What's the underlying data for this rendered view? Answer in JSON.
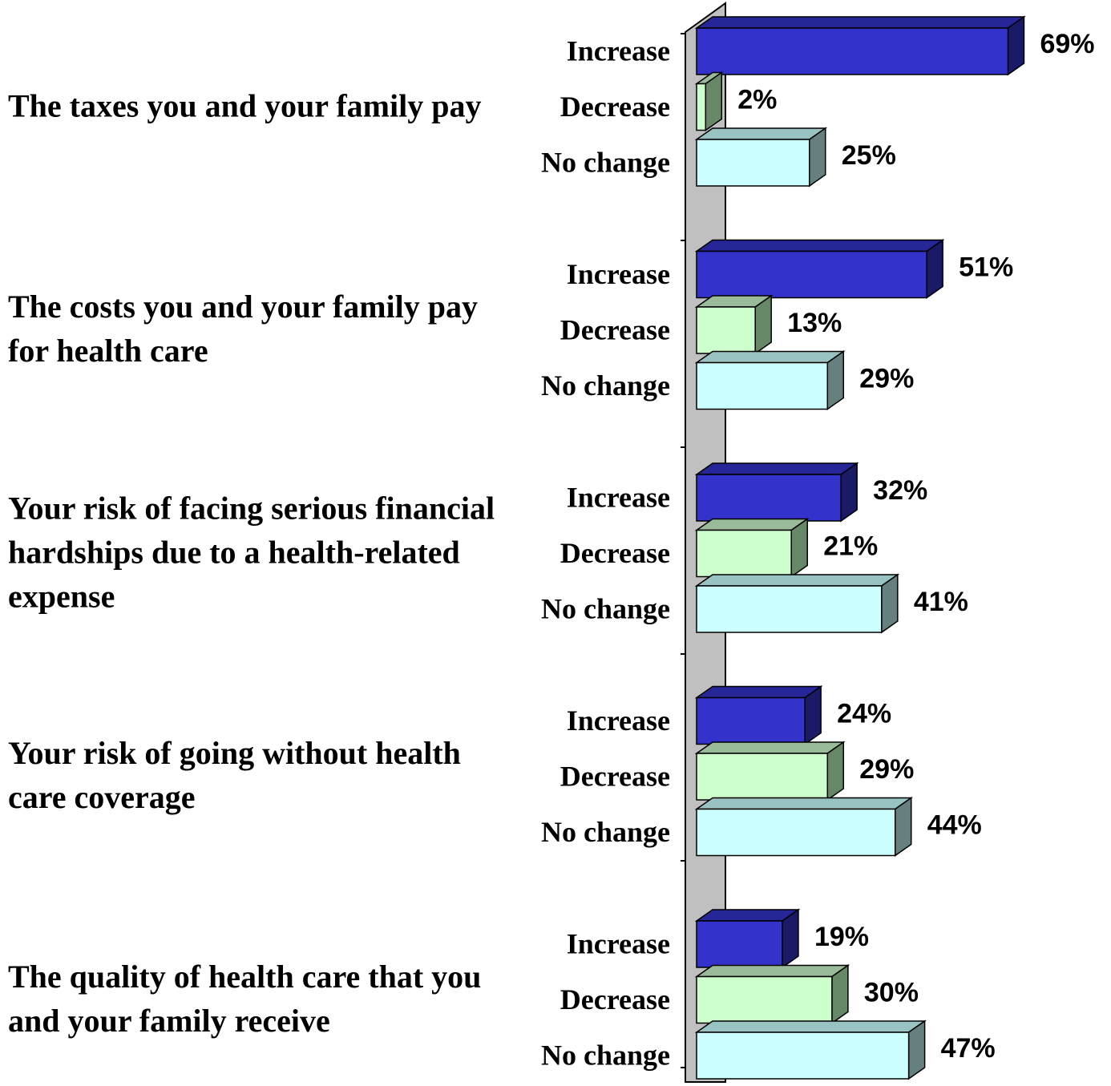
{
  "chart_data": {
    "type": "bar",
    "orientation": "horizontal",
    "style": "3d",
    "groups": [
      {
        "label": "The taxes you and your family pay",
        "bars": [
          {
            "category": "Increase",
            "value": 69,
            "label": "69%"
          },
          {
            "category": "Decrease",
            "value": 2,
            "label": "2%"
          },
          {
            "category": "No change",
            "value": 25,
            "label": "25%"
          }
        ]
      },
      {
        "label": "The costs you and your family pay for health care",
        "bars": [
          {
            "category": "Increase",
            "value": 51,
            "label": "51%"
          },
          {
            "category": "Decrease",
            "value": 13,
            "label": "13%"
          },
          {
            "category": "No change",
            "value": 29,
            "label": "29%"
          }
        ]
      },
      {
        "label": "Your risk of facing serious financial hardships due to a health-related expense",
        "bars": [
          {
            "category": "Increase",
            "value": 32,
            "label": "32%"
          },
          {
            "category": "Decrease",
            "value": 21,
            "label": "21%"
          },
          {
            "category": "No change",
            "value": 41,
            "label": "41%"
          }
        ]
      },
      {
        "label": "Your risk of going without health care coverage",
        "bars": [
          {
            "category": "Increase",
            "value": 24,
            "label": "24%"
          },
          {
            "category": "Decrease",
            "value": 29,
            "label": "29%"
          },
          {
            "category": "No change",
            "value": 44,
            "label": "44%"
          }
        ]
      },
      {
        "label": "The quality of health care that you and your family receive",
        "bars": [
          {
            "category": "Increase",
            "value": 19,
            "label": "19%"
          },
          {
            "category": "Decrease",
            "value": 30,
            "label": "30%"
          },
          {
            "category": "No change",
            "value": 47,
            "label": "47%"
          }
        ]
      }
    ],
    "colors": {
      "Increase": {
        "front": "#3333cc",
        "top": "#262699",
        "side": "#1a1a66"
      },
      "Decrease": {
        "front": "#ccffcc",
        "top": "#99bb99",
        "side": "#668866"
      },
      "No change": {
        "front": "#ccffff",
        "top": "#99c2c2",
        "side": "#668080"
      },
      "wall": "#c0c0c0"
    },
    "grid": false,
    "legend": "none"
  }
}
